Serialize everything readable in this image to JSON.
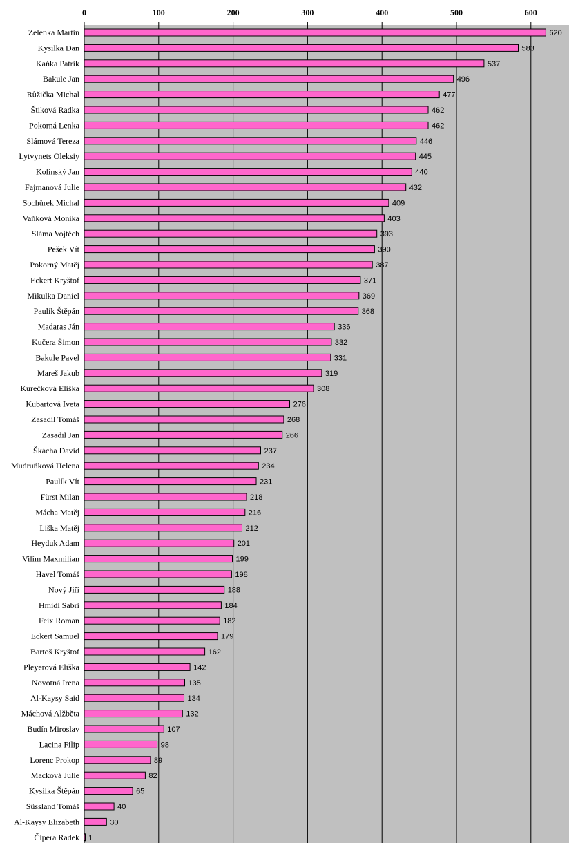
{
  "chart_data": {
    "type": "bar",
    "orientation": "horizontal",
    "title": "",
    "xlabel": "",
    "ylabel": "",
    "xlim": [
      0,
      650
    ],
    "x_ticks": [
      0,
      100,
      200,
      300,
      400,
      500,
      600
    ],
    "x_tick_labels": [
      "0",
      "100",
      "200",
      "300",
      "400",
      "500",
      "600"
    ],
    "grid": true,
    "categories": [
      "Zelenka Martin",
      "Kysilka Dan",
      "Kaňka Patrik",
      "Bakule Jan",
      "Růžička Michal",
      "Štiková Radka",
      "Pokorná Lenka",
      "Slámová Tereza",
      "Lytvynets Oleksiy",
      "Kolínský Jan",
      "Fajmanová Julie",
      "Sochůrek Michal",
      "Vaňková Monika",
      "Sláma Vojtěch",
      "Pešek Vít",
      "Pokorný Matěj",
      "Eckert Kryštof",
      "Mikulka Daniel",
      "Paulík Štěpán",
      "Madaras Ján",
      "Kučera Šimon",
      "Bakule Pavel",
      "Mareš Jakub",
      "Kurečková Eliška",
      "Kubartová Iveta",
      "Zasadil Tomáš",
      "Zasadil Jan",
      "Škácha David",
      "Mudruňková Helena",
      "Paulík Vít",
      "Fürst Milan",
      "Mácha Matěj",
      "Liška Matěj",
      "Heyduk Adam",
      "Vilím Maxmilian",
      "Havel Tomáš",
      "Nový Jiří",
      "Hmidi Sabri",
      "Feix Roman",
      "Eckert Samuel",
      "Bartoš Kryštof",
      "Pleyerová Eliška",
      "Novotná Irena",
      "Al-Kaysy Said",
      "Máchová Alžběta",
      "Budín Miroslav",
      "Lacina Filip",
      "Lorenc Prokop",
      "Macková Julie",
      "Kysilka Štěpán",
      "Süssland Tomáš",
      "Al-Kaysy Elizabeth",
      "Čipera Radek"
    ],
    "values": [
      620,
      583,
      537,
      496,
      477,
      462,
      462,
      446,
      445,
      440,
      432,
      409,
      403,
      393,
      390,
      387,
      371,
      369,
      368,
      336,
      332,
      331,
      319,
      308,
      276,
      268,
      266,
      237,
      234,
      231,
      218,
      216,
      212,
      201,
      199,
      198,
      188,
      184,
      182,
      179,
      162,
      142,
      135,
      134,
      132,
      107,
      98,
      89,
      82,
      65,
      40,
      30,
      1
    ],
    "colors": {
      "bar_fill": "#ff66cc",
      "bar_stroke": "#000000",
      "plot_bg": "#c0c0c0",
      "grid": "#000000"
    }
  }
}
